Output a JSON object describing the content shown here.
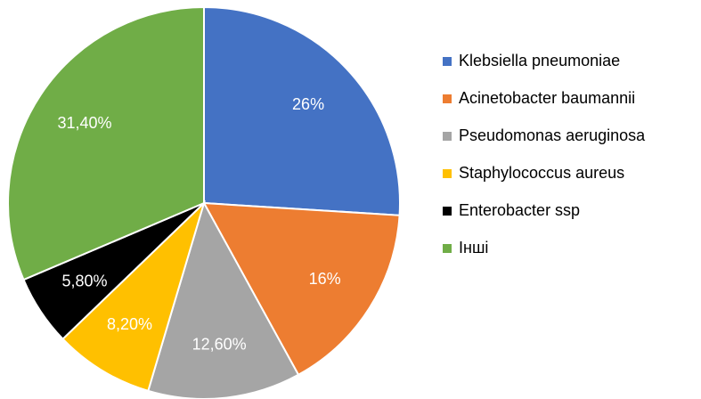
{
  "chart_data": {
    "type": "pie",
    "categories": [
      "Klebsiella pneumoniae",
      "Acinetobacter baumannii",
      "Pseudomonas aeruginosa",
      "Staphylococcus aureus",
      "Enterobacter ssp",
      "Інші"
    ],
    "values": [
      26,
      16,
      12.6,
      8.2,
      5.8,
      31.4
    ],
    "value_labels": [
      "26%",
      "16%",
      "12,60%",
      "8,20%",
      "5,80%",
      "31,40%"
    ],
    "colors": [
      "#4472c4",
      "#ed7d31",
      "#a5a5a5",
      "#ffc000",
      "#000000",
      "#70ad47"
    ],
    "legend": "right"
  }
}
